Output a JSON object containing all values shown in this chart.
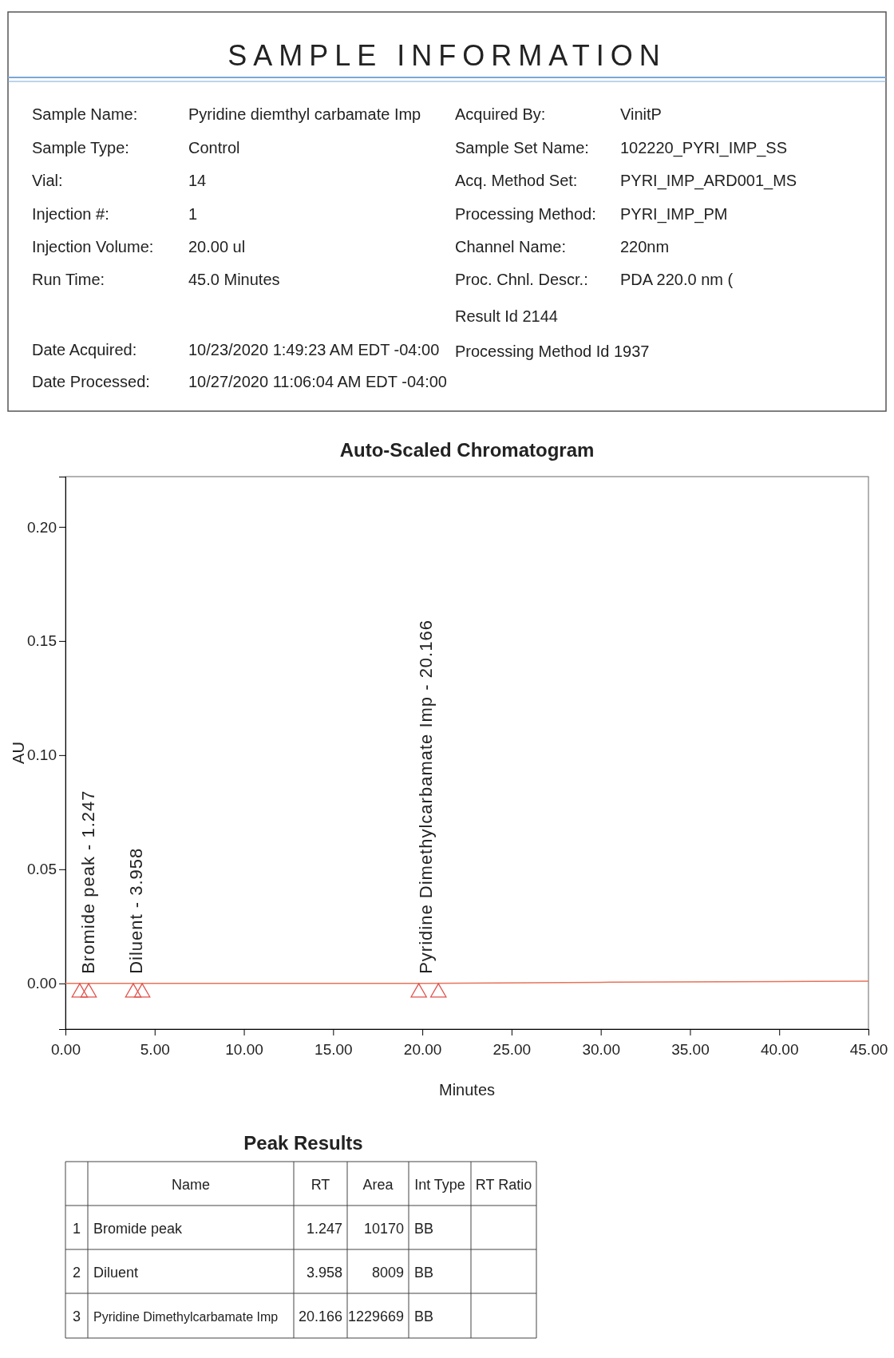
{
  "chart_data": [
    {
      "type": "other",
      "title": "SAMPLE INFORMATION",
      "annotations": [
        "Sample Name:",
        "Pyridine diemthyl carbamate Imp",
        "Acquired By:",
        "VinitP",
        "Sample Type:",
        "Control",
        "Sample Set Name:",
        "102220_PYRI_IMP_SS",
        "Vial:",
        "14",
        "Acq. Method Set:",
        "PYRI_IMP_ARD001_MS",
        "Injection #:",
        "1",
        "Processing Method:",
        "PYRI_IMP_PM",
        "Injection Volume:",
        "20.00 ul",
        "Channel Name:",
        "220nm",
        "Run Time:",
        "45.0 Minutes",
        "Proc. Chnl. Descr.:",
        "PDA 220.0 nm (",
        "Result Id 2144",
        "Date Acquired:",
        "10/23/2020 1:49:23 AM EDT -04:00",
        "Processing Method Id 1937",
        "Date Processed:",
        "10/27/2020 11:06:04 AM EDT -04:00"
      ]
    },
    {
      "type": "line",
      "title": "Auto-Scaled Chromatogram",
      "xlabel": "Minutes",
      "ylabel": "AU",
      "xlim": [
        0,
        45
      ],
      "xticks": [
        {
          "value": 0,
          "label": "0.00"
        },
        {
          "value": 5,
          "label": "5.00"
        },
        {
          "value": 10,
          "label": "10.00"
        },
        {
          "value": 15,
          "label": "15.00"
        },
        {
          "value": 20,
          "label": "20.00"
        },
        {
          "value": 25,
          "label": "25.00"
        },
        {
          "value": 30,
          "label": "30.00"
        },
        {
          "value": 35,
          "label": "35.00"
        },
        {
          "value": 40,
          "label": "40.00"
        },
        {
          "value": 45,
          "label": "45.00"
        }
      ],
      "ylim": [
        -0.02,
        0.222
      ],
      "yticks": [
        {
          "value": 0,
          "label": "0.00"
        },
        {
          "value": 0.05,
          "label": "0.05"
        },
        {
          "value": 0.1,
          "label": "0.10"
        },
        {
          "value": 0.15,
          "label": "0.15"
        },
        {
          "value": 0.2,
          "label": "0.20"
        }
      ],
      "grid": false,
      "series": [
        {
          "type": "line",
          "color": "#e8735a",
          "x": [
            0,
            1.247,
            3.958,
            10,
            20,
            20.166,
            30,
            40,
            45
          ],
          "values": [
            0,
            0,
            0,
            0,
            0,
            0,
            0.0005,
            0.0008,
            0.001
          ]
        },
        {
          "type": "scatter",
          "marker": "triangle",
          "color": "#e0504a",
          "x": [
            0.8,
            1.3,
            3.8,
            4.3,
            19.8,
            20.9
          ],
          "values": [
            -0.004,
            -0.004,
            -0.004,
            -0.004,
            -0.004,
            -0.004
          ]
        }
      ],
      "annotations": [
        {
          "text": "Bromide peak - 1.247",
          "x": 1.247,
          "y": 0
        },
        {
          "text": "Diluent - 3.958",
          "x": 3.958,
          "y": 0
        },
        {
          "text": "Pyridine Dimethylcarbamate Imp - 20.166",
          "x": 20.166,
          "y": 0
        }
      ]
    },
    {
      "type": "other",
      "title": "Peak Results",
      "annotations": [
        "Name",
        "RT",
        "Area",
        "Int Type",
        "RT Ratio",
        "1",
        "Bromide peak",
        "1.247",
        "10170",
        "BB",
        "2",
        "Diluent",
        "3.958",
        "8009",
        "BB",
        "3",
        "Pyridine Dimethylcarbamate Imp",
        "20.166",
        "1229669",
        "BB"
      ]
    }
  ]
}
